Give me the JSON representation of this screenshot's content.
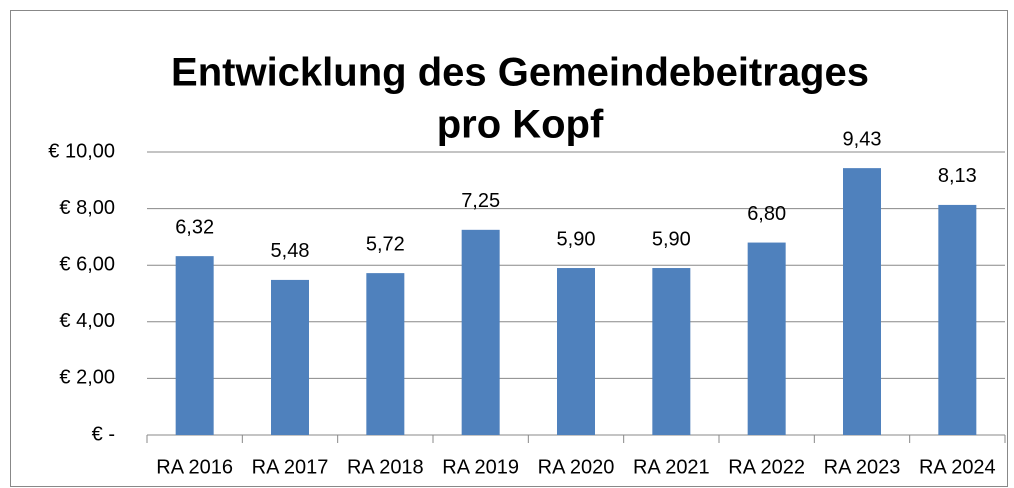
{
  "chart_data": {
    "type": "bar",
    "title": [
      "Entwicklung des Gemeindebeitrages",
      "pro Kopf"
    ],
    "categories": [
      "RA 2016",
      "RA 2017",
      "RA 2018",
      "RA 2019",
      "RA 2020",
      "RA 2021",
      "RA 2022",
      "RA 2023",
      "RA 2024"
    ],
    "values": [
      6.32,
      5.48,
      5.72,
      7.25,
      5.9,
      5.9,
      6.8,
      9.43,
      8.13
    ],
    "value_labels": [
      "6,32",
      "5,48",
      "5,72",
      "7,25",
      "5,90",
      "5,90",
      "6,80",
      "9,43",
      "8,13"
    ],
    "color": "#4f81bd",
    "ylim": [
      0,
      10
    ],
    "yticks": [
      {
        "value": 0,
        "label": "€ -"
      },
      {
        "value": 2,
        "label": "€ 2,00"
      },
      {
        "value": 4,
        "label": "€ 4,00"
      },
      {
        "value": 6,
        "label": "€ 6,00"
      },
      {
        "value": 8,
        "label": "€ 8,00"
      },
      {
        "value": 10,
        "label": "€ 10,00"
      }
    ],
    "grid": true
  }
}
